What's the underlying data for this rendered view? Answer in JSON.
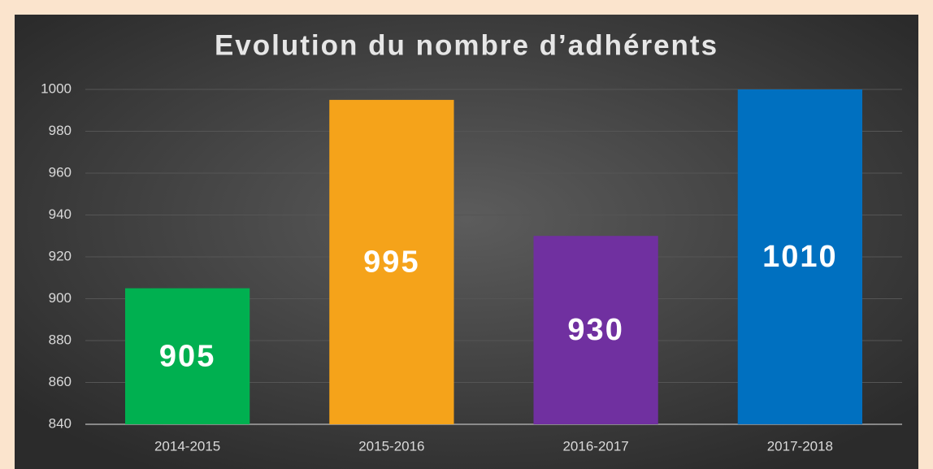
{
  "chart_data": {
    "type": "bar",
    "title": "Evolution du nombre d’adhérents",
    "categories": [
      "2014-2015",
      "2015-2016",
      "2016-2017",
      "2017-2018"
    ],
    "values": [
      905,
      995,
      930,
      1010
    ],
    "colors": [
      "#00b050",
      "#f5a31a",
      "#7030a0",
      "#0070c0"
    ],
    "ylim": [
      840,
      1000
    ],
    "yticks": [
      840,
      860,
      880,
      900,
      920,
      940,
      960,
      980,
      1000
    ],
    "grid": true,
    "data_labels": true
  }
}
